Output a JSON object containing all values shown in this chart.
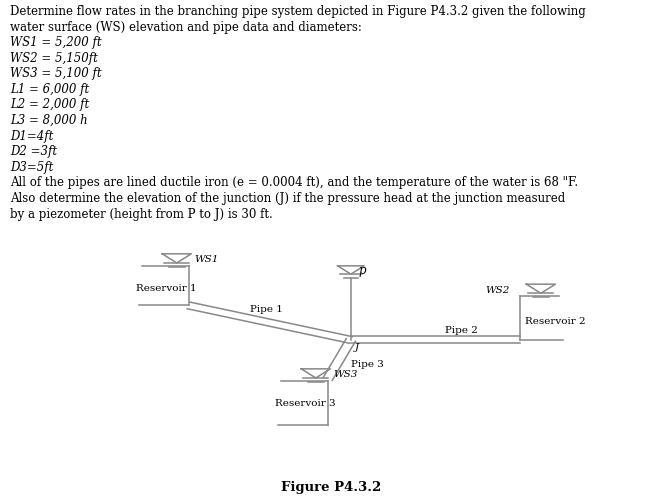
{
  "text_lines": [
    [
      "normal",
      "Determine flow rates in the branching pipe system depicted in Figure P4.3.2 given the following"
    ],
    [
      "normal",
      "water surface (WS) elevation and pipe data and diameters:"
    ],
    [
      "italic",
      "WS1 = 5,200 ft"
    ],
    [
      "italic",
      "WS2 = 5,150ft"
    ],
    [
      "italic",
      "WS3 = 5,100 ft"
    ],
    [
      "italic",
      "L1 = 6,000 ft"
    ],
    [
      "italic",
      "L2 = 2,000 ft"
    ],
    [
      "italic",
      "L3 = 8,000 h"
    ],
    [
      "italic",
      "D1=4ft"
    ],
    [
      "italic",
      "D2 =3ft"
    ],
    [
      "italic",
      "D3=5ft"
    ],
    [
      "normal",
      "All of the pipes are lined ductile iron (e = 0.0004 ft), and the temperature of the water is 68 \"F."
    ],
    [
      "normal",
      "Also determine the elevation of the junction (J) if the pressure head at the junction measured"
    ],
    [
      "normal",
      "by a piezometer (height from P to J) is 30 ft."
    ]
  ],
  "fig_caption": "Figure P4.3.2",
  "bg_color": "#ffffff",
  "text_color": "#000000",
  "line_color": "#888888",
  "fontsize_text": 8.5,
  "fontsize_diagram": 7.5,
  "diagram": {
    "res1_label": "Reservoir 1",
    "res2_label": "Reservoir 2",
    "res3_label": "Reservoir 3",
    "ws1_label": "WS1",
    "ws2_label": "WS2",
    "ws3_label": "WS3",
    "pipe1_label": "Pipe 1",
    "pipe2_label": "Pipe 2",
    "pipe3_label": "Pipe 3",
    "p_label": "p",
    "j_label": "J"
  }
}
